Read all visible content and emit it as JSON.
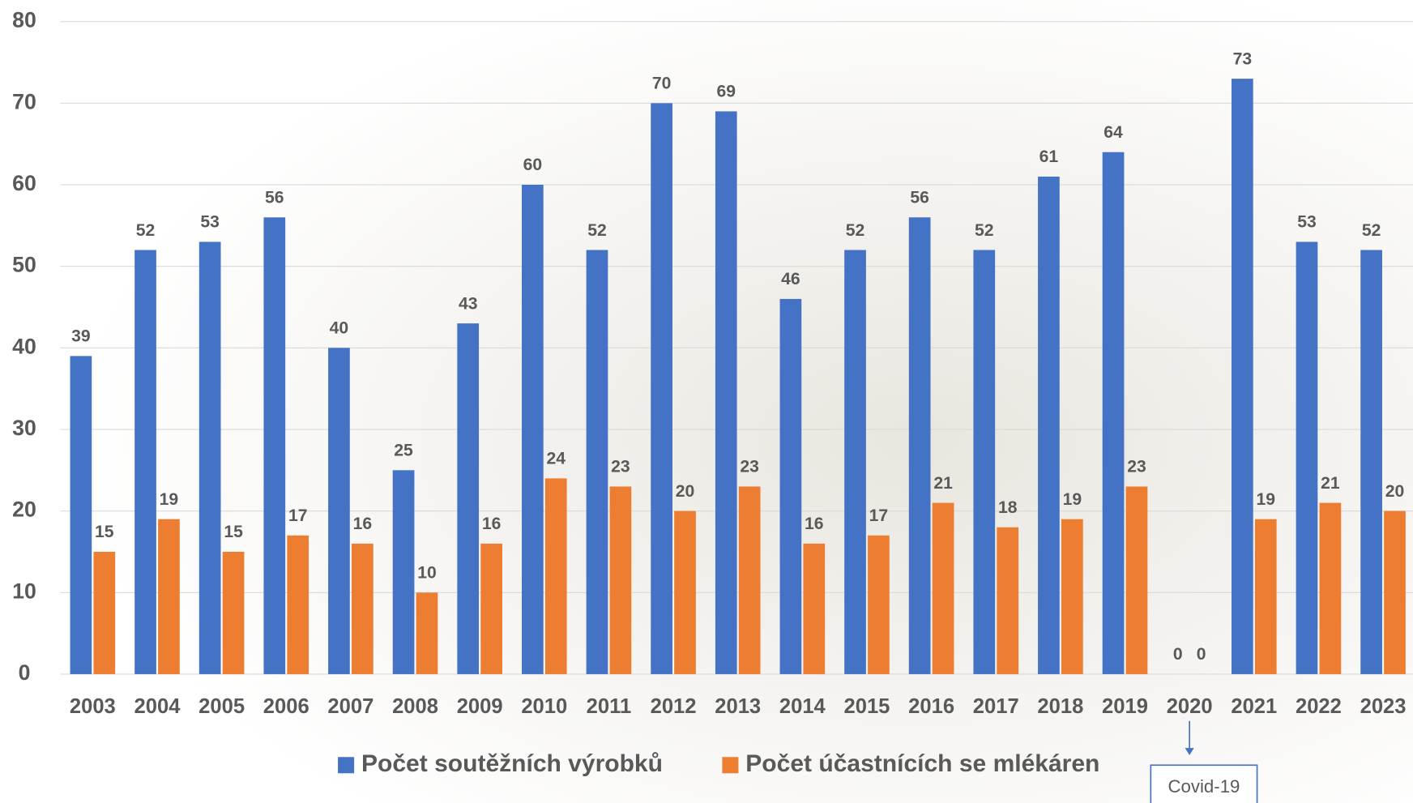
{
  "chart_data": {
    "type": "bar",
    "categories": [
      "2003",
      "2004",
      "2005",
      "2006",
      "2007",
      "2008",
      "2009",
      "2010",
      "2011",
      "2012",
      "2013",
      "2014",
      "2015",
      "2016",
      "2017",
      "2018",
      "2019",
      "2020",
      "2021",
      "2022",
      "2023"
    ],
    "series": [
      {
        "name": "Počet soutěžních výrobků",
        "color": "#4472c4",
        "values": [
          39,
          52,
          53,
          56,
          40,
          25,
          43,
          60,
          52,
          70,
          69,
          46,
          52,
          56,
          52,
          61,
          64,
          0,
          73,
          53,
          52
        ]
      },
      {
        "name": "Počet účastnících se mlékáren",
        "color": "#ed7d31",
        "values": [
          15,
          19,
          15,
          17,
          16,
          10,
          16,
          24,
          23,
          20,
          23,
          16,
          17,
          21,
          18,
          19,
          23,
          0,
          19,
          21,
          20
        ]
      }
    ],
    "ylim": [
      0,
      80
    ],
    "yticks": [
      0,
      10,
      20,
      30,
      40,
      50,
      60,
      70,
      80
    ],
    "grid": true,
    "legend": "bottom",
    "annotation": {
      "text": "Covid-19",
      "category": "2020"
    }
  }
}
